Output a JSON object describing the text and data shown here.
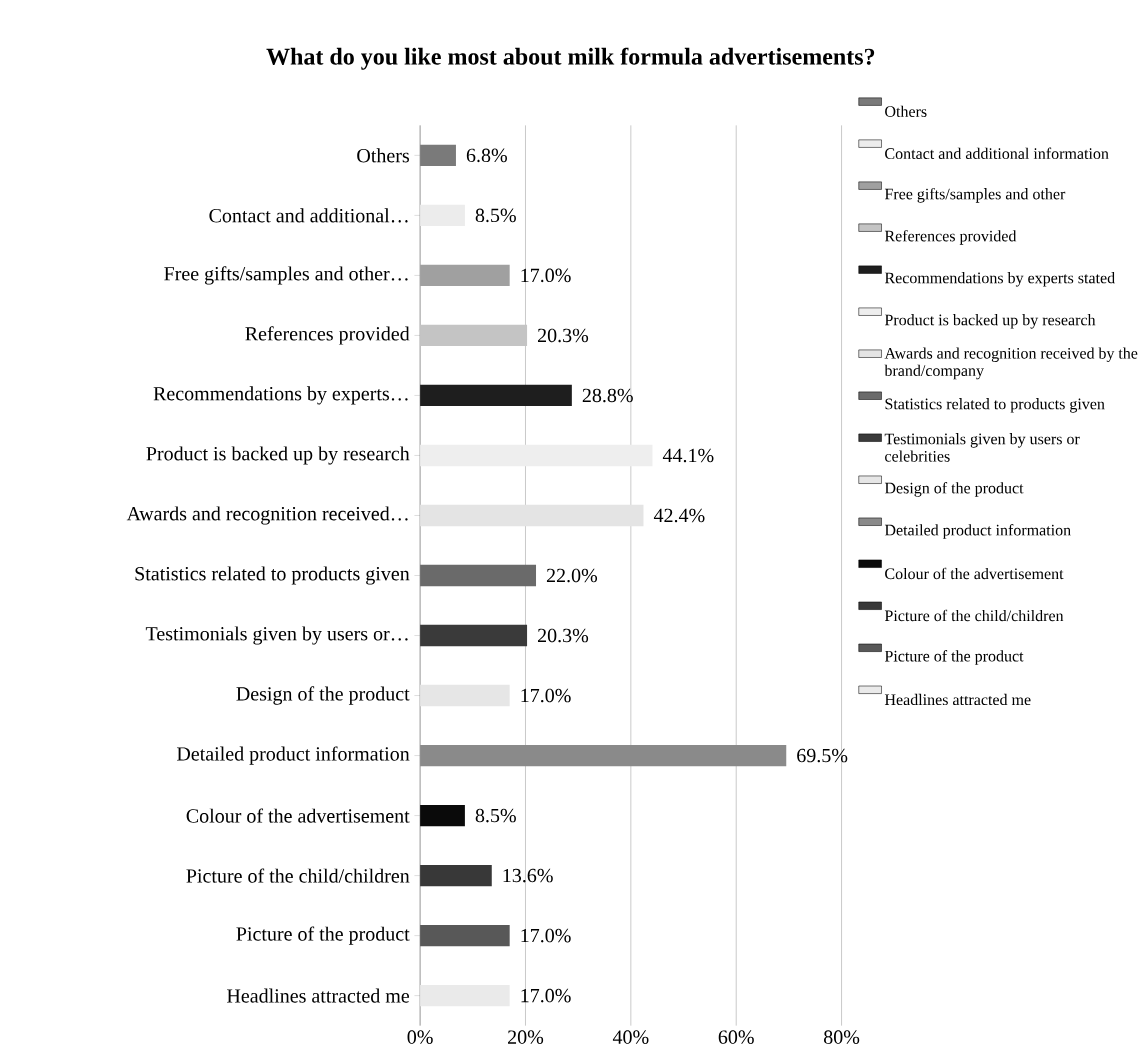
{
  "chart_data": {
    "type": "bar",
    "orientation": "horizontal",
    "stacked": true,
    "title": "What do you like most about milk formula advertisements?",
    "categories": [
      "Others",
      "Contact and additional…",
      "Free gifts/samples and other…",
      "References provided",
      "Recommendations by experts…",
      "Product is backed up by research",
      "Awards and recognition received…",
      "Statistics related to products given",
      "Testimonials given by users or…",
      "Design of the product",
      "Detailed product information",
      "Colour of the advertisement",
      "Picture of the child/children",
      "Picture of the product",
      "Headlines attracted me"
    ],
    "series": [
      {
        "name": "Others",
        "color": "#7a7a7a",
        "values": [
          6.8,
          null,
          null,
          null,
          null,
          null,
          null,
          null,
          null,
          null,
          null,
          null,
          null,
          null,
          null
        ],
        "value_labels": [
          "6.8%",
          null,
          null,
          null,
          null,
          null,
          null,
          null,
          null,
          null,
          null,
          null,
          null,
          null,
          null
        ]
      },
      {
        "name": "Contact and additional information",
        "color": "#ececec",
        "values": [
          null,
          8.5,
          null,
          null,
          null,
          null,
          null,
          null,
          null,
          null,
          null,
          null,
          null,
          null,
          null
        ],
        "value_labels": [
          null,
          "8.5%",
          null,
          null,
          null,
          null,
          null,
          null,
          null,
          null,
          null,
          null,
          null,
          null,
          null
        ]
      },
      {
        "name": "Free gifts/samples and other",
        "color": "#a0a0a0",
        "values": [
          null,
          null,
          17.0,
          null,
          null,
          null,
          null,
          null,
          null,
          null,
          null,
          null,
          null,
          null,
          null
        ],
        "value_labels": [
          null,
          null,
          "17.0%",
          null,
          null,
          null,
          null,
          null,
          null,
          null,
          null,
          null,
          null,
          null,
          null
        ]
      },
      {
        "name": "References provided",
        "color": "#c4c4c4",
        "values": [
          null,
          null,
          null,
          20.3,
          null,
          null,
          null,
          null,
          null,
          null,
          null,
          null,
          null,
          null,
          null
        ],
        "value_labels": [
          null,
          null,
          null,
          "20.3%",
          null,
          null,
          null,
          null,
          null,
          null,
          null,
          null,
          null,
          null,
          null
        ]
      },
      {
        "name": "Recommendations by experts stated",
        "color": "#1e1e1e",
        "values": [
          null,
          null,
          null,
          null,
          28.8,
          null,
          null,
          null,
          null,
          null,
          null,
          null,
          null,
          null,
          null
        ],
        "value_labels": [
          null,
          null,
          null,
          null,
          "28.8%",
          null,
          null,
          null,
          null,
          null,
          null,
          null,
          null,
          null,
          null
        ]
      },
      {
        "name": "Product is backed up by research",
        "color": "#eeeeee",
        "values": [
          null,
          null,
          null,
          null,
          null,
          44.1,
          null,
          null,
          null,
          null,
          null,
          null,
          null,
          null,
          null
        ],
        "value_labels": [
          null,
          null,
          null,
          null,
          null,
          "44.1%",
          null,
          null,
          null,
          null,
          null,
          null,
          null,
          null,
          null
        ]
      },
      {
        "name": "Awards and recognition received by the brand/company",
        "color": "#e4e4e4",
        "values": [
          null,
          null,
          null,
          null,
          null,
          null,
          42.4,
          null,
          null,
          null,
          null,
          null,
          null,
          null,
          null
        ],
        "value_labels": [
          null,
          null,
          null,
          null,
          null,
          null,
          "42.4%",
          null,
          null,
          null,
          null,
          null,
          null,
          null,
          null
        ]
      },
      {
        "name": "Statistics related to products given",
        "color": "#6a6a6a",
        "values": [
          null,
          null,
          null,
          null,
          null,
          null,
          null,
          22.0,
          null,
          null,
          null,
          null,
          null,
          null,
          null
        ],
        "value_labels": [
          null,
          null,
          null,
          null,
          null,
          null,
          null,
          "22.0%",
          null,
          null,
          null,
          null,
          null,
          null,
          null
        ]
      },
      {
        "name": "Testimonials given by users or celebrities",
        "color": "#3a3a3a",
        "values": [
          null,
          null,
          null,
          null,
          null,
          null,
          null,
          null,
          20.3,
          null,
          null,
          null,
          null,
          null,
          null
        ],
        "value_labels": [
          null,
          null,
          null,
          null,
          null,
          null,
          null,
          null,
          "20.3%",
          null,
          null,
          null,
          null,
          null,
          null
        ]
      },
      {
        "name": "Design of the product",
        "color": "#e6e6e6",
        "values": [
          null,
          null,
          null,
          null,
          null,
          null,
          null,
          null,
          null,
          17.0,
          null,
          null,
          null,
          null,
          null
        ],
        "value_labels": [
          null,
          null,
          null,
          null,
          null,
          null,
          null,
          null,
          null,
          "17.0%",
          null,
          null,
          null,
          null,
          null
        ]
      },
      {
        "name": "Detailed product information",
        "color": "#8a8a8a",
        "values": [
          null,
          null,
          null,
          null,
          null,
          null,
          null,
          null,
          null,
          null,
          69.5,
          null,
          null,
          null,
          null
        ],
        "value_labels": [
          null,
          null,
          null,
          null,
          null,
          null,
          null,
          null,
          null,
          null,
          "69.5%",
          null,
          null,
          null,
          null
        ]
      },
      {
        "name": "Colour of the advertisement",
        "color": "#0a0a0a",
        "values": [
          null,
          null,
          null,
          null,
          null,
          null,
          null,
          null,
          null,
          null,
          null,
          8.5,
          null,
          null,
          null
        ],
        "value_labels": [
          null,
          null,
          null,
          null,
          null,
          null,
          null,
          null,
          null,
          null,
          null,
          "8.5%",
          null,
          null,
          null
        ]
      },
      {
        "name": "Picture of the child/children",
        "color": "#383838",
        "values": [
          null,
          null,
          null,
          null,
          null,
          null,
          null,
          null,
          null,
          null,
          null,
          null,
          13.6,
          null,
          null
        ],
        "value_labels": [
          null,
          null,
          null,
          null,
          null,
          null,
          null,
          null,
          null,
          null,
          null,
          null,
          "13.6%",
          null,
          null
        ]
      },
      {
        "name": "Picture of the product",
        "color": "#585858",
        "values": [
          null,
          null,
          null,
          null,
          null,
          null,
          null,
          null,
          null,
          null,
          null,
          null,
          null,
          17.0,
          null
        ],
        "value_labels": [
          null,
          null,
          null,
          null,
          null,
          null,
          null,
          null,
          null,
          null,
          null,
          null,
          null,
          "17.0%",
          null
        ]
      },
      {
        "name": "Headlines attracted me",
        "color": "#eaeaea",
        "values": [
          null,
          null,
          null,
          null,
          null,
          null,
          null,
          null,
          null,
          null,
          null,
          null,
          null,
          null,
          17.0
        ],
        "value_labels": [
          null,
          null,
          null,
          null,
          null,
          null,
          null,
          null,
          null,
          null,
          null,
          null,
          null,
          null,
          "17.0%"
        ]
      }
    ],
    "xlim": [
      0,
      80
    ],
    "xticks": [
      {
        "value": 0,
        "label": "0%"
      },
      {
        "value": 20,
        "label": "20%"
      },
      {
        "value": 40,
        "label": "40%"
      },
      {
        "value": 60,
        "label": "60%"
      },
      {
        "value": 80,
        "label": "80%"
      }
    ],
    "grid": "x",
    "legend": "right"
  }
}
